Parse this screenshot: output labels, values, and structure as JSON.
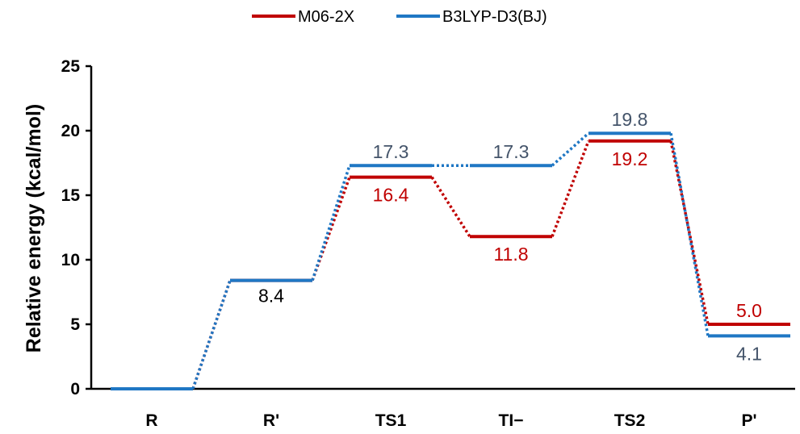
{
  "chart_data": {
    "type": "line",
    "title": "",
    "xlabel": "",
    "ylabel": "Relative energy (kcal/mol)",
    "ylim": [
      0,
      25
    ],
    "yticks": [
      "0",
      "5",
      "10",
      "15",
      "20",
      "25"
    ],
    "categories": [
      "R",
      "R'",
      "TS1",
      "TI−",
      "TS2",
      "P'"
    ],
    "grid": false,
    "legend_position": "top-center",
    "series": [
      {
        "name": "M06-2X",
        "color": "#c00000",
        "values": [
          0,
          8.4,
          16.4,
          11.8,
          19.2,
          5.0
        ],
        "labels": [
          "",
          "",
          "16.4",
          "11.8",
          "19.2",
          "5.0"
        ]
      },
      {
        "name": "B3LYP-D3(BJ)",
        "color": "#1f77c4",
        "values": [
          0,
          8.4,
          17.3,
          17.3,
          19.8,
          4.1
        ],
        "labels": [
          "",
          "8.4",
          "17.3",
          "17.3",
          "19.8",
          "4.1"
        ]
      }
    ],
    "label_colors": {
      "B3LYP-D3(BJ)": "#44546a",
      "shared": "#000000"
    }
  }
}
